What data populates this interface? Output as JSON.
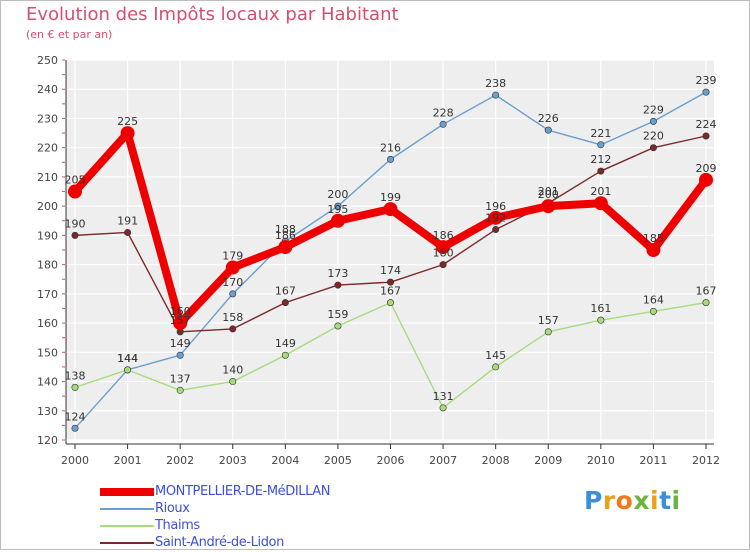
{
  "title": "Evolution des Impôts locaux par Habitant",
  "subtitle": "(en € et par an)",
  "logo_text": "Proxiti",
  "chart_data": {
    "type": "line",
    "x": [
      "2000",
      "2001",
      "2002",
      "2003",
      "2004",
      "2005",
      "2006",
      "2007",
      "2008",
      "2009",
      "2010",
      "2011",
      "2012"
    ],
    "ylim": [
      120,
      250
    ],
    "yticks": [
      120,
      130,
      140,
      150,
      160,
      170,
      180,
      190,
      200,
      210,
      220,
      230,
      240,
      250
    ],
    "grid": true,
    "series": [
      {
        "name": "Rioux",
        "color": "#6a9fd0",
        "values": [
          124,
          144,
          149,
          170,
          188,
          200,
          216,
          228,
          238,
          226,
          221,
          229,
          239
        ]
      },
      {
        "name": "Thaims",
        "color": "#a6db7e",
        "values": [
          138,
          144,
          137,
          140,
          149,
          159,
          167,
          131,
          145,
          157,
          161,
          164,
          167
        ]
      },
      {
        "name": "Saint-André-de-Lidon",
        "color": "#7a2a2a",
        "values": [
          190,
          191,
          157,
          158,
          167,
          173,
          174,
          180,
          192,
          201,
          212,
          220,
          224
        ]
      },
      {
        "name": "MONTPELLIER-DE-MéDILLAN",
        "color": "#ee0000",
        "values": [
          205,
          225,
          160,
          179,
          186,
          195,
          199,
          186,
          196,
          200,
          201,
          185,
          209
        ]
      }
    ],
    "legend": [
      "MONTPELLIER-DE-MéDILLAN",
      "Rioux",
      "Thaims",
      "Saint-André-de-Lidon"
    ]
  }
}
